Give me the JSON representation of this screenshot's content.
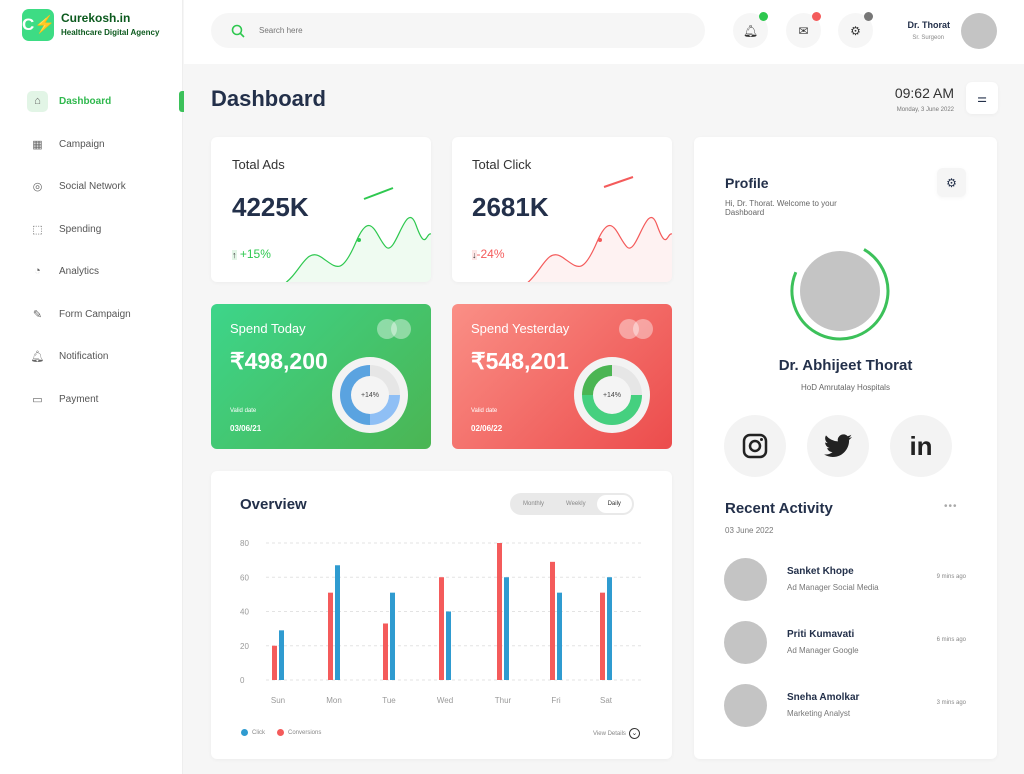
{
  "brand": {
    "name": "Curekosh.in",
    "tagline": "Healthcare Digital Agency"
  },
  "sidebar": {
    "items": [
      {
        "label": "Dashboard",
        "icon": "home-icon",
        "active": true
      },
      {
        "label": "Campaign",
        "icon": "grid-icon"
      },
      {
        "label": "Social Network",
        "icon": "compass-icon"
      },
      {
        "label": "Spending",
        "icon": "chart-line-icon"
      },
      {
        "label": "Analytics",
        "icon": "pie-chart-icon"
      },
      {
        "label": "Form Campaign",
        "icon": "edit-icon"
      },
      {
        "label": "Notification",
        "icon": "bell-icon"
      },
      {
        "label": "Payment",
        "icon": "wallet-icon"
      }
    ]
  },
  "header": {
    "search_placeholder": "Search here",
    "user_name": "Dr. Thorat",
    "user_role": "Sr. Surgeon",
    "status_colors": {
      "notification": "#2ec84f",
      "mail": "#f45b5b",
      "settings": "#777777"
    }
  },
  "page": {
    "title": "Dashboard",
    "time": "09:62 AM",
    "date": "Monday, 3 June 2022"
  },
  "stats": [
    {
      "title": "Total Ads",
      "value": "4225K",
      "change": "+15%",
      "color": "#2ec84f"
    },
    {
      "title": "Total Click",
      "value": "2681K",
      "change": "-24%",
      "color": "#f45b5b"
    }
  ],
  "spend": [
    {
      "title": "Spend Today",
      "amount": "₹498,200",
      "valid_label": "Valid date",
      "valid_date": "03/06/21",
      "ring_label": "+14%"
    },
    {
      "title": "Spend Yesterday",
      "amount": "₹548,201",
      "valid_label": "Valid date",
      "valid_date": "02/06/22",
      "ring_label": "+14%"
    }
  ],
  "overview": {
    "title": "Overview",
    "tabs": [
      "Monthly",
      "Weekly",
      "Daily"
    ],
    "active_tab": "Daily",
    "view_details": "View Details"
  },
  "chart_data": {
    "type": "bar",
    "categories": [
      "Sun",
      "Mon",
      "Tue",
      "Wed",
      "Thur",
      "Fri",
      "Sat"
    ],
    "series": [
      {
        "name": "Conversions",
        "color": "#f45b5b",
        "values": [
          20,
          51,
          33,
          60,
          80,
          69,
          51
        ]
      },
      {
        "name": "Click",
        "color": "#2f9bd0",
        "values": [
          29,
          67,
          51,
          40,
          60,
          51,
          60
        ]
      }
    ],
    "yticks": [
      0,
      20,
      40,
      60,
      80
    ],
    "ylim": [
      0,
      80
    ],
    "grid": true,
    "legend": "bottom-left"
  },
  "profile": {
    "title": "Profile",
    "welcome": "Hi, Dr. Thorat. Welcome to your Dashboard",
    "name": "Dr. Abhijeet Thorat",
    "org": "HoD Amrutalay Hospitals",
    "socials": [
      {
        "icon": "instagram-icon"
      },
      {
        "icon": "twitter-icon"
      },
      {
        "label": "in",
        "icon": "linkedin-icon"
      }
    ]
  },
  "activity": {
    "title": "Recent Activity",
    "date": "03 June 2022",
    "items": [
      {
        "name": "Sanket Khope",
        "role": "Ad Manager Social Media",
        "time": "9 mins ago"
      },
      {
        "name": "Priti Kumavati",
        "role": "Ad Manager Google",
        "time": "6 mins ago"
      },
      {
        "name": "Sneha Amolkar",
        "role": "Marketing Analyst",
        "time": "3 mins ago"
      }
    ]
  }
}
